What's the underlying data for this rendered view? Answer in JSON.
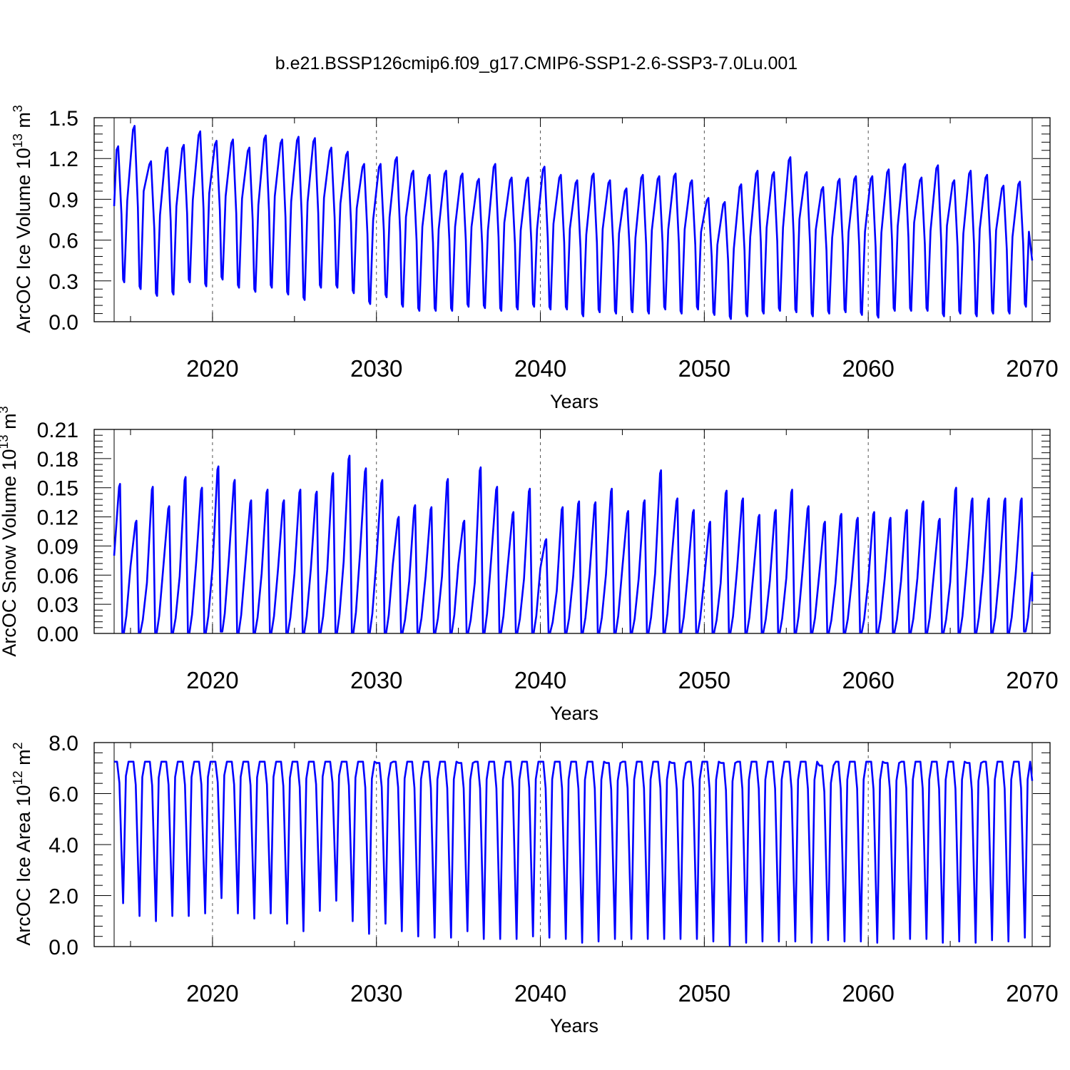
{
  "figure_title": "b.e21.BSSP126cmip6.f09_g17.CMIP6-SSP1-2.6-SSP3-7.0Lu.001",
  "colors": {
    "line": "#0000ff",
    "axis": "#000000",
    "grid": "#555555"
  },
  "chart_data": [
    {
      "type": "line",
      "title": "b.e21.BSSP126cmip6.f09_g17.CMIP6-SSP1-2.6-SSP3-7.0Lu.001",
      "xlabel": "Years",
      "ylabel_main": "ArcOC Ice Volume 10",
      "ylabel_exp": "13",
      "ylabel_unit": " m",
      "ylabel_unit_exp": "3",
      "xlim": [
        2014,
        2070
      ],
      "ylim": [
        0,
        1.5
      ],
      "x_ticks": [
        2020,
        2030,
        2040,
        2050,
        2060,
        2070
      ],
      "x_tick_labels": [
        "2020",
        "2030",
        "2040",
        "2050",
        "2060",
        "2070"
      ],
      "y_ticks": [
        0,
        0.3,
        0.6,
        0.9,
        1.2,
        1.5
      ],
      "y_tick_labels": [
        "0.0",
        "0.3",
        "0.6",
        "0.9",
        "1.2",
        "1.5"
      ],
      "grid": "dashed vertical lines at decades",
      "start": 0.85,
      "end": 0.45,
      "series": [
        {
          "name": "ArcOC Ice Volume",
          "years": [
            2014,
            2015,
            2016,
            2017,
            2018,
            2019,
            2020,
            2021,
            2022,
            2023,
            2024,
            2025,
            2026,
            2027,
            2028,
            2029,
            2030,
            2031,
            2032,
            2033,
            2034,
            2035,
            2036,
            2037,
            2038,
            2039,
            2040,
            2041,
            2042,
            2043,
            2044,
            2045,
            2046,
            2047,
            2048,
            2049,
            2050,
            2051,
            2052,
            2053,
            2054,
            2055,
            2056,
            2057,
            2058,
            2059,
            2060,
            2061,
            2062,
            2063,
            2064,
            2065,
            2066,
            2067,
            2068,
            2069
          ],
          "max": [
            1.29,
            1.44,
            1.18,
            1.28,
            1.3,
            1.4,
            1.33,
            1.34,
            1.28,
            1.37,
            1.34,
            1.36,
            1.35,
            1.28,
            1.25,
            1.16,
            1.16,
            1.21,
            1.11,
            1.08,
            1.11,
            1.09,
            1.05,
            1.16,
            1.06,
            1.06,
            1.14,
            1.08,
            1.04,
            1.09,
            1.04,
            0.98,
            1.08,
            1.07,
            1.09,
            1.04,
            0.91,
            0.88,
            1.01,
            1.11,
            1.1,
            1.21,
            1.1,
            0.99,
            1.05,
            1.07,
            1.07,
            1.12,
            1.16,
            1.06,
            1.15,
            1.04,
            1.11,
            1.08,
            1.0,
            1.03
          ],
          "min": [
            0.29,
            0.24,
            0.19,
            0.2,
            0.29,
            0.26,
            0.31,
            0.25,
            0.22,
            0.25,
            0.2,
            0.16,
            0.25,
            0.25,
            0.21,
            0.13,
            0.18,
            0.11,
            0.08,
            0.08,
            0.08,
            0.11,
            0.1,
            0.08,
            0.09,
            0.11,
            0.09,
            0.09,
            0.04,
            0.07,
            0.06,
            0.07,
            0.06,
            0.09,
            0.06,
            0.09,
            0.05,
            0.02,
            0.04,
            0.06,
            0.08,
            0.07,
            0.04,
            0.06,
            0.07,
            0.05,
            0.03,
            0.08,
            0.08,
            0.08,
            0.04,
            0.06,
            0.04,
            0.06,
            0.06,
            0.11
          ]
        }
      ]
    },
    {
      "type": "line",
      "xlabel": "Years",
      "ylabel_main": "ArcOC Snow Volume 10",
      "ylabel_exp": "13",
      "ylabel_unit": " m",
      "ylabel_unit_exp": "3",
      "xlim": [
        2014,
        2070
      ],
      "ylim": [
        0,
        0.21
      ],
      "x_ticks": [
        2020,
        2030,
        2040,
        2050,
        2060,
        2070
      ],
      "x_tick_labels": [
        "2020",
        "2030",
        "2040",
        "2050",
        "2060",
        "2070"
      ],
      "y_ticks": [
        0,
        0.03,
        0.06,
        0.09,
        0.12,
        0.15,
        0.18,
        0.21
      ],
      "y_tick_labels": [
        "0.00",
        "0.03",
        "0.06",
        "0.09",
        "0.12",
        "0.15",
        "0.18",
        "0.21"
      ],
      "grid": "dashed vertical lines at decades",
      "start": 0.08,
      "end": 0.033,
      "series": [
        {
          "name": "ArcOC Snow Volume",
          "years": [
            2014,
            2015,
            2016,
            2017,
            2018,
            2019,
            2020,
            2021,
            2022,
            2023,
            2024,
            2025,
            2026,
            2027,
            2028,
            2029,
            2030,
            2031,
            2032,
            2033,
            2034,
            2035,
            2036,
            2037,
            2038,
            2039,
            2040,
            2041,
            2042,
            2043,
            2044,
            2045,
            2046,
            2047,
            2048,
            2049,
            2050,
            2051,
            2052,
            2053,
            2054,
            2055,
            2056,
            2057,
            2058,
            2059,
            2060,
            2061,
            2062,
            2063,
            2064,
            2065,
            2066,
            2067,
            2068,
            2069
          ],
          "max": [
            0.154,
            0.116,
            0.151,
            0.131,
            0.161,
            0.15,
            0.172,
            0.158,
            0.137,
            0.148,
            0.137,
            0.148,
            0.146,
            0.165,
            0.183,
            0.17,
            0.158,
            0.12,
            0.132,
            0.13,
            0.159,
            0.116,
            0.171,
            0.151,
            0.125,
            0.149,
            0.097,
            0.13,
            0.136,
            0.135,
            0.149,
            0.126,
            0.137,
            0.168,
            0.139,
            0.127,
            0.115,
            0.147,
            0.139,
            0.122,
            0.127,
            0.148,
            0.131,
            0.115,
            0.123,
            0.119,
            0.125,
            0.119,
            0.127,
            0.136,
            0.118,
            0.15,
            0.139,
            0.139,
            0.139,
            0.139
          ],
          "min": [
            0.001,
            0.001,
            0.001,
            0.001,
            0.001,
            0.001,
            0.002,
            0.001,
            0.001,
            0.001,
            0.001,
            0.001,
            0.001,
            0.001,
            0.001,
            0.001,
            0.001,
            0.001,
            0.001,
            0.001,
            0.001,
            0.001,
            0.001,
            0.001,
            0.001,
            0.001,
            0.001,
            0.001,
            0.001,
            0.001,
            0.001,
            0.001,
            0.001,
            0.001,
            0.001,
            0.001,
            0.001,
            0.001,
            0.001,
            0.001,
            0.001,
            0.001,
            0.001,
            0.001,
            0.001,
            0.001,
            0.001,
            0.001,
            0.001,
            0.001,
            0.001,
            0.001,
            0.001,
            0.001,
            0.001,
            0.002
          ]
        }
      ]
    },
    {
      "type": "line",
      "xlabel": "Years",
      "ylabel_main": "ArcOC Ice Area 10",
      "ylabel_exp": "12",
      "ylabel_unit": " m",
      "ylabel_unit_exp": "2",
      "xlim": [
        2014,
        2070
      ],
      "ylim": [
        0,
        8
      ],
      "x_ticks": [
        2020,
        2030,
        2040,
        2050,
        2060,
        2070
      ],
      "x_tick_labels": [
        "2020",
        "2030",
        "2040",
        "2050",
        "2060",
        "2070"
      ],
      "y_ticks": [
        0,
        2,
        4,
        6,
        8
      ],
      "y_tick_labels": [
        "0.0",
        "2.0",
        "4.0",
        "6.0",
        "8.0"
      ],
      "grid": "dashed vertical lines at decades",
      "start": 7.25,
      "end": 6.5,
      "series": [
        {
          "name": "ArcOC Ice Area",
          "years": [
            2014,
            2015,
            2016,
            2017,
            2018,
            2019,
            2020,
            2021,
            2022,
            2023,
            2024,
            2025,
            2026,
            2027,
            2028,
            2029,
            2030,
            2031,
            2032,
            2033,
            2034,
            2035,
            2036,
            2037,
            2038,
            2039,
            2040,
            2041,
            2042,
            2043,
            2044,
            2045,
            2046,
            2047,
            2048,
            2049,
            2050,
            2051,
            2052,
            2053,
            2054,
            2055,
            2056,
            2057,
            2058,
            2059,
            2060,
            2061,
            2062,
            2063,
            2064,
            2065,
            2066,
            2067,
            2068,
            2069
          ],
          "max": [
            7.25,
            7.25,
            7.25,
            7.25,
            7.25,
            7.25,
            7.25,
            7.25,
            7.25,
            7.25,
            7.25,
            7.25,
            7.25,
            7.25,
            7.25,
            7.25,
            7.2,
            7.25,
            7.25,
            7.25,
            7.25,
            7.2,
            7.25,
            7.25,
            7.25,
            7.25,
            7.25,
            7.25,
            7.25,
            7.25,
            7.2,
            7.25,
            7.25,
            7.25,
            7.2,
            7.25,
            7.25,
            7.2,
            7.25,
            7.25,
            7.25,
            7.25,
            7.25,
            7.1,
            7.25,
            7.25,
            7.25,
            7.2,
            7.25,
            7.25,
            7.25,
            7.25,
            7.2,
            7.25,
            7.25,
            7.25
          ],
          "min": [
            1.7,
            1.2,
            1.0,
            1.2,
            1.2,
            1.3,
            1.9,
            1.3,
            1.1,
            1.3,
            0.9,
            0.6,
            1.4,
            1.8,
            1.0,
            0.5,
            0.9,
            0.6,
            0.4,
            0.35,
            0.35,
            0.6,
            0.3,
            0.3,
            0.3,
            0.4,
            0.35,
            0.3,
            0.15,
            0.2,
            0.3,
            0.3,
            0.3,
            0.3,
            0.3,
            0.3,
            0.2,
            0.05,
            0.15,
            0.2,
            0.2,
            0.2,
            0.15,
            0.25,
            0.2,
            0.2,
            0.15,
            0.3,
            0.3,
            0.3,
            0.15,
            0.2,
            0.15,
            0.25,
            0.2,
            0.35
          ]
        }
      ]
    }
  ]
}
